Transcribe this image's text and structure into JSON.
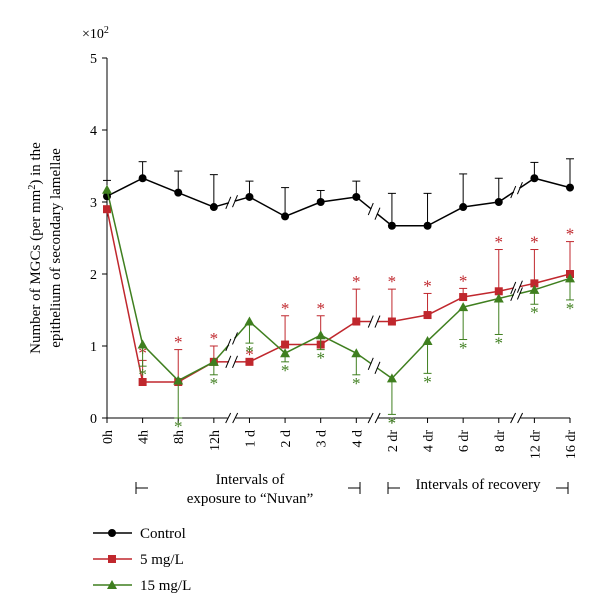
{
  "chart_data": {
    "type": "line",
    "y_multiplier_label": "×10",
    "y_multiplier_exponent": "2",
    "ylabel_parts": [
      "Number of MGCs (per mm",
      "2",
      ") in the",
      "epithelium of secondary lamellae"
    ],
    "ylim": [
      0,
      5
    ],
    "yticks": [
      "0",
      "1",
      "2",
      "3",
      "4",
      "5"
    ],
    "categories": [
      "0h",
      "4h",
      "8h",
      "12h",
      "1 d",
      "2 d",
      "3 d",
      "4 d",
      "2 dr",
      "4 dr",
      "6 dr",
      "8 dr",
      "12 dr",
      "16 dr"
    ],
    "axis_break_after_indices": [
      3,
      7,
      11
    ],
    "grid": false,
    "legend_position": "bottom-left",
    "period_labels": {
      "exposure_line1": "Intervals of",
      "exposure_line2": "exposure to “Nuvan”",
      "recovery": "Intervals of recovery"
    },
    "significance_marker": "*",
    "series": [
      {
        "name": "Control",
        "color": "#000000",
        "marker": "circle",
        "values": [
          3.08,
          3.33,
          3.13,
          2.93,
          3.07,
          2.8,
          3.0,
          3.07,
          2.67,
          2.67,
          2.93,
          3.0,
          3.33,
          3.2
        ],
        "errors": [
          0.22,
          0.23,
          0.3,
          0.45,
          0.22,
          0.4,
          0.16,
          0.22,
          0.45,
          0.45,
          0.46,
          0.33,
          0.22,
          0.4
        ],
        "error_direction": "up",
        "significant": [
          false,
          false,
          false,
          false,
          false,
          false,
          false,
          false,
          false,
          false,
          false,
          false,
          false,
          false
        ]
      },
      {
        "name": "5 mg/L",
        "color": "#c0272d",
        "marker": "square",
        "values": [
          2.9,
          0.5,
          0.5,
          0.78,
          0.78,
          1.02,
          1.02,
          1.34,
          1.34,
          1.43,
          1.68,
          1.76,
          1.87,
          2.0
        ],
        "errors": [
          0.0,
          0.3,
          0.45,
          0.22,
          0.0,
          0.4,
          0.4,
          0.45,
          0.45,
          0.3,
          0.12,
          0.58,
          0.47,
          0.45
        ],
        "error_direction": "up",
        "significant": [
          false,
          true,
          true,
          true,
          true,
          true,
          true,
          true,
          true,
          true,
          true,
          true,
          true,
          true
        ]
      },
      {
        "name": "15 mg/L",
        "color": "#3f7f1f",
        "marker": "triangle",
        "values": [
          3.17,
          1.02,
          0.52,
          0.78,
          1.34,
          0.9,
          1.15,
          0.9,
          0.55,
          1.07,
          1.54,
          1.66,
          1.78,
          1.94
        ],
        "errors": [
          0.0,
          0.3,
          0.52,
          0.18,
          0.3,
          0.12,
          0.2,
          0.3,
          0.5,
          0.45,
          0.45,
          0.5,
          0.2,
          0.3
        ],
        "error_direction": "down",
        "significant": [
          false,
          true,
          true,
          true,
          true,
          true,
          true,
          true,
          true,
          true,
          true,
          true,
          true,
          true
        ]
      }
    ]
  }
}
